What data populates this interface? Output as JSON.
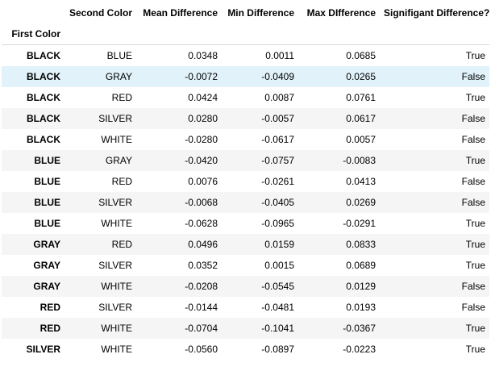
{
  "table": {
    "columns": [
      "Second Color",
      "Mean Difference",
      "Min Difference",
      "Max DIfference",
      "Signifigant Difference?"
    ],
    "index_name": "First Color",
    "highlighted_row": 1,
    "rows": [
      {
        "first": "BLACK",
        "second": "BLUE",
        "mean": "0.0348",
        "min": "0.0011",
        "max": "0.0685",
        "sig": "True"
      },
      {
        "first": "BLACK",
        "second": "GRAY",
        "mean": "-0.0072",
        "min": "-0.0409",
        "max": "0.0265",
        "sig": "False"
      },
      {
        "first": "BLACK",
        "second": "RED",
        "mean": "0.0424",
        "min": "0.0087",
        "max": "0.0761",
        "sig": "True"
      },
      {
        "first": "BLACK",
        "second": "SILVER",
        "mean": "0.0280",
        "min": "-0.0057",
        "max": "0.0617",
        "sig": "False"
      },
      {
        "first": "BLACK",
        "second": "WHITE",
        "mean": "-0.0280",
        "min": "-0.0617",
        "max": "0.0057",
        "sig": "False"
      },
      {
        "first": "BLUE",
        "second": "GRAY",
        "mean": "-0.0420",
        "min": "-0.0757",
        "max": "-0.0083",
        "sig": "True"
      },
      {
        "first": "BLUE",
        "second": "RED",
        "mean": "0.0076",
        "min": "-0.0261",
        "max": "0.0413",
        "sig": "False"
      },
      {
        "first": "BLUE",
        "second": "SILVER",
        "mean": "-0.0068",
        "min": "-0.0405",
        "max": "0.0269",
        "sig": "False"
      },
      {
        "first": "BLUE",
        "second": "WHITE",
        "mean": "-0.0628",
        "min": "-0.0965",
        "max": "-0.0291",
        "sig": "True"
      },
      {
        "first": "GRAY",
        "second": "RED",
        "mean": "0.0496",
        "min": "0.0159",
        "max": "0.0833",
        "sig": "True"
      },
      {
        "first": "GRAY",
        "second": "SILVER",
        "mean": "0.0352",
        "min": "0.0015",
        "max": "0.0689",
        "sig": "True"
      },
      {
        "first": "GRAY",
        "second": "WHITE",
        "mean": "-0.0208",
        "min": "-0.0545",
        "max": "0.0129",
        "sig": "False"
      },
      {
        "first": "RED",
        "second": "SILVER",
        "mean": "-0.0144",
        "min": "-0.0481",
        "max": "0.0193",
        "sig": "False"
      },
      {
        "first": "RED",
        "second": "WHITE",
        "mean": "-0.0704",
        "min": "-0.1041",
        "max": "-0.0367",
        "sig": "True"
      },
      {
        "first": "SILVER",
        "second": "WHITE",
        "mean": "-0.0560",
        "min": "-0.0897",
        "max": "-0.0223",
        "sig": "True"
      }
    ]
  },
  "colors": {
    "stripe": "#f5f5f5",
    "hover_highlight": "#e1f2fa",
    "header_rule": "#d6d6d6"
  }
}
